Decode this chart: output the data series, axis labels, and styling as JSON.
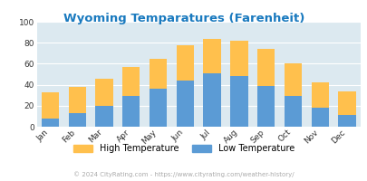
{
  "title": "Wyoming Temparatures (Farenheit)",
  "months": [
    "Jan",
    "Feb",
    "Mar",
    "Apr",
    "May",
    "Jun",
    "Jul",
    "Aug",
    "Sep",
    "Oct",
    "Nov",
    "Dec"
  ],
  "low_temps": [
    8,
    13,
    20,
    29,
    36,
    44,
    51,
    48,
    39,
    29,
    18,
    11
  ],
  "high_temps": [
    33,
    38,
    46,
    57,
    65,
    78,
    84,
    82,
    74,
    60,
    42,
    34
  ],
  "low_color": "#5b9bd5",
  "high_color": "#ffc04d",
  "bg_color": "#dce9f0",
  "title_color": "#1a7abf",
  "ylabel_vals": [
    0,
    20,
    40,
    60,
    80,
    100
  ],
  "ylim": [
    0,
    100
  ],
  "footer": "© 2024 CityRating.com - https://www.cityrating.com/weather-history/",
  "legend_high": "High Temperature",
  "legend_low": "Low Temperature",
  "bar_width": 0.65
}
